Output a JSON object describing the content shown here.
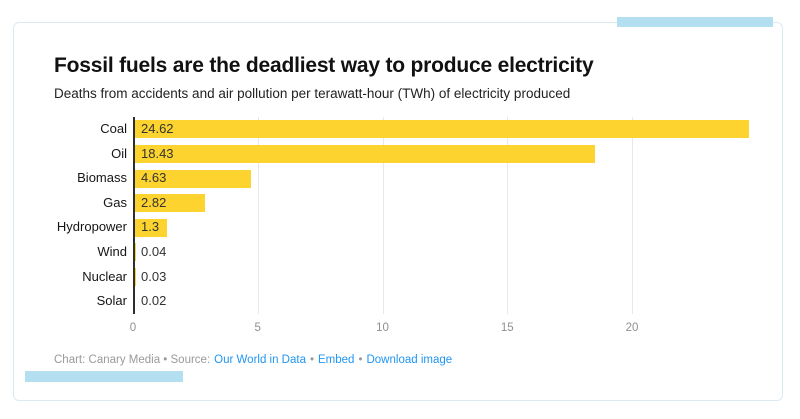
{
  "header": {
    "title": "Fossil fuels are the deadliest way to produce electricity",
    "subtitle": "Deaths from accidents and air pollution per terawatt-hour (TWh) of electricity produced"
  },
  "chart_data": {
    "type": "bar",
    "orientation": "horizontal",
    "title": "Fossil fuels are the deadliest way to produce electricity",
    "subtitle": "Deaths from accidents and air pollution per terawatt-hour (TWh) of electricity produced",
    "categories": [
      "Coal",
      "Oil",
      "Biomass",
      "Gas",
      "Hydropower",
      "Wind",
      "Nuclear",
      "Solar"
    ],
    "values": [
      24.62,
      18.43,
      4.63,
      2.82,
      1.3,
      0.04,
      0.03,
      0.02
    ],
    "value_labels": [
      "24.62",
      "18.43",
      "4.63",
      "2.82",
      "1.3",
      "0.04",
      "0.03",
      "0.02"
    ],
    "xticks": [
      0,
      5,
      10,
      15,
      20
    ],
    "xlabel": "",
    "ylabel": "",
    "xlim": [
      0,
      25.6
    ],
    "grid": "vertical",
    "legend": "none",
    "bar_color": "#fcd32f",
    "axis_color": "#2e2e2e",
    "gridline_color": "#e8e8e8",
    "tick_label_color": "#8f8f8f"
  },
  "footer": {
    "credit": "Chart: Canary Media • Source:",
    "separator": "•",
    "links": [
      "Our World in Data",
      "Embed",
      "Download image"
    ],
    "link_color": "#2196f3"
  },
  "decor": {
    "accent_color": "#b3dff0",
    "card_border_color": "#dbe9f1"
  }
}
